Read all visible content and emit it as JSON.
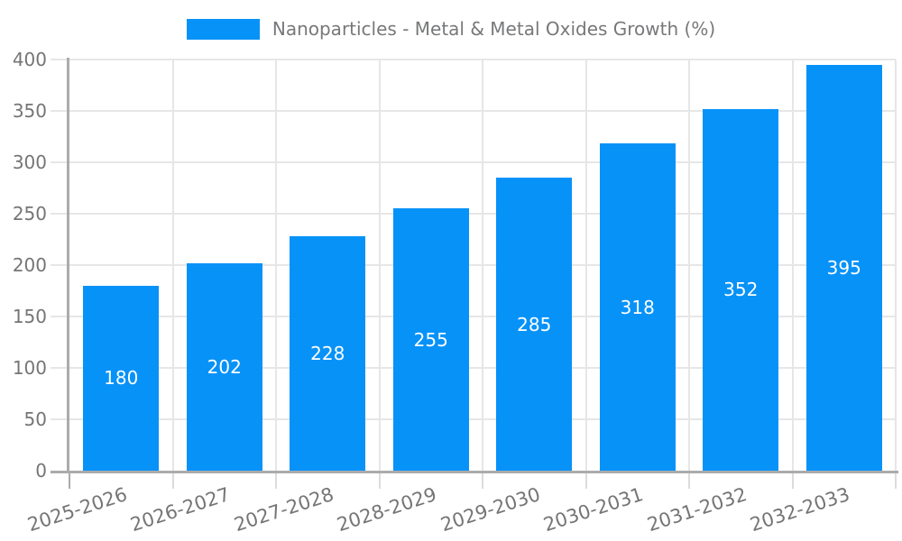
{
  "legend": {
    "label": "Nanoparticles - Metal & Metal Oxides Growth (%)"
  },
  "colors": {
    "bar": "#0792f8",
    "grid": "#e6e6e6",
    "axis": "#ababab",
    "tick": "#dcdcdc",
    "tick_label": "#757575",
    "title": "#77787a",
    "value_label": "#ffffff",
    "background": "#ffffff"
  },
  "chart_data": {
    "type": "bar",
    "title": "Nanoparticles - Metal & Metal Oxides Growth (%)",
    "categories": [
      "2025-2026",
      "2026-2027",
      "2027-2028",
      "2028-2029",
      "2029-2030",
      "2030-2031",
      "2031-2032",
      "2032-2033"
    ],
    "values": [
      180,
      202,
      228,
      255,
      285,
      318,
      352,
      395
    ],
    "xlabel": "",
    "ylabel": "",
    "ylim": [
      0,
      400
    ],
    "yticks": [
      0,
      50,
      100,
      150,
      200,
      250,
      300,
      350,
      400
    ],
    "grid": true,
    "legend_position": "top",
    "value_labels": "inside-center",
    "x_label_rotation_deg": -18
  }
}
